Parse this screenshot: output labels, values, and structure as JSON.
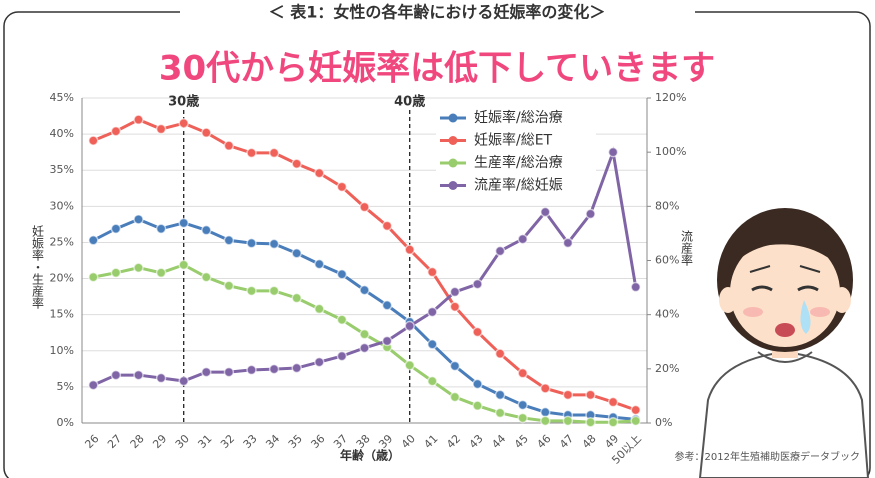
{
  "frame_title": "＜ 表1：女性の各年齢における妊娠率の変化＞",
  "chart_data": {
    "type": "line",
    "title": "30代から妊娠率は低下していきます",
    "categories": [
      "26",
      "27",
      "28",
      "29",
      "30",
      "31",
      "32",
      "33",
      "34",
      "35",
      "36",
      "37",
      "38",
      "39",
      "40",
      "41",
      "42",
      "43",
      "44",
      "45",
      "46",
      "47",
      "48",
      "49",
      "50以上"
    ],
    "series": [
      {
        "name": "妊娠率/総治療",
        "color": "#4a7ebb",
        "values": [
          25.3,
          26.9,
          28.2,
          26.9,
          27.7,
          26.7,
          25.3,
          24.9,
          24.8,
          23.5,
          22.0,
          20.6,
          18.4,
          16.3,
          14.0,
          10.9,
          7.9,
          5.4,
          3.9,
          2.5,
          1.5,
          1.1,
          1.1,
          0.8,
          0.5
        ]
      },
      {
        "name": "妊娠率/総ET",
        "color": "#ee6058",
        "values": [
          39.1,
          40.4,
          42.0,
          40.7,
          41.5,
          40.2,
          38.4,
          37.4,
          37.4,
          35.9,
          34.6,
          32.7,
          29.9,
          27.3,
          24.0,
          20.9,
          16.1,
          12.6,
          9.6,
          6.9,
          4.8,
          3.9,
          3.9,
          2.9,
          1.8
        ]
      },
      {
        "name": "生産率/総治療",
        "color": "#98cc6c",
        "values": [
          20.2,
          20.8,
          21.5,
          20.8,
          21.9,
          20.2,
          19.0,
          18.3,
          18.3,
          17.3,
          15.8,
          14.3,
          12.3,
          10.5,
          8.0,
          5.8,
          3.6,
          2.4,
          1.4,
          0.7,
          0.3,
          0.3,
          0.1,
          0.1,
          0.3
        ]
      },
      {
        "name": "流産率/総妊娠",
        "color": "#8065a6",
        "axis": "y2",
        "values": [
          14.0,
          17.7,
          17.7,
          16.6,
          15.5,
          18.8,
          18.8,
          19.6,
          19.9,
          20.3,
          22.5,
          24.7,
          27.7,
          30.3,
          35.8,
          41.0,
          48.4,
          51.3,
          63.5,
          67.9,
          77.9,
          66.5,
          77.2,
          100,
          50.2
        ]
      }
    ],
    "ylim": [
      0,
      45
    ],
    "yticks": [
      {
        "value": 0,
        "label": "0%"
      },
      {
        "value": 5,
        "label": "5%"
      },
      {
        "value": 10,
        "label": "10%"
      },
      {
        "value": 15,
        "label": "15%"
      },
      {
        "value": 20,
        "label": "20%"
      },
      {
        "value": 25,
        "label": "25%"
      },
      {
        "value": 30,
        "label": "30%"
      },
      {
        "value": 35,
        "label": "35%"
      },
      {
        "value": 40,
        "label": "40%"
      },
      {
        "value": 45,
        "label": "45%"
      }
    ],
    "y2lim": [
      0,
      120
    ],
    "y2ticks": [
      {
        "value": 0,
        "label": "0%"
      },
      {
        "value": 20,
        "label": "20%"
      },
      {
        "value": 40,
        "label": "40%"
      },
      {
        "value": 60,
        "label": "60%"
      },
      {
        "value": 80,
        "label": "80%"
      },
      {
        "value": 100,
        "label": "100%"
      },
      {
        "value": 120,
        "label": "120%"
      }
    ],
    "xlabel": "年齢（歳）",
    "ylabel": "妊娠率・生産率",
    "y2label": "流産率",
    "annotations": [
      "30歳",
      "40歳"
    ],
    "source": "参考：2012年生殖補助医療データブック",
    "grid": true,
    "legend": "upper right"
  }
}
